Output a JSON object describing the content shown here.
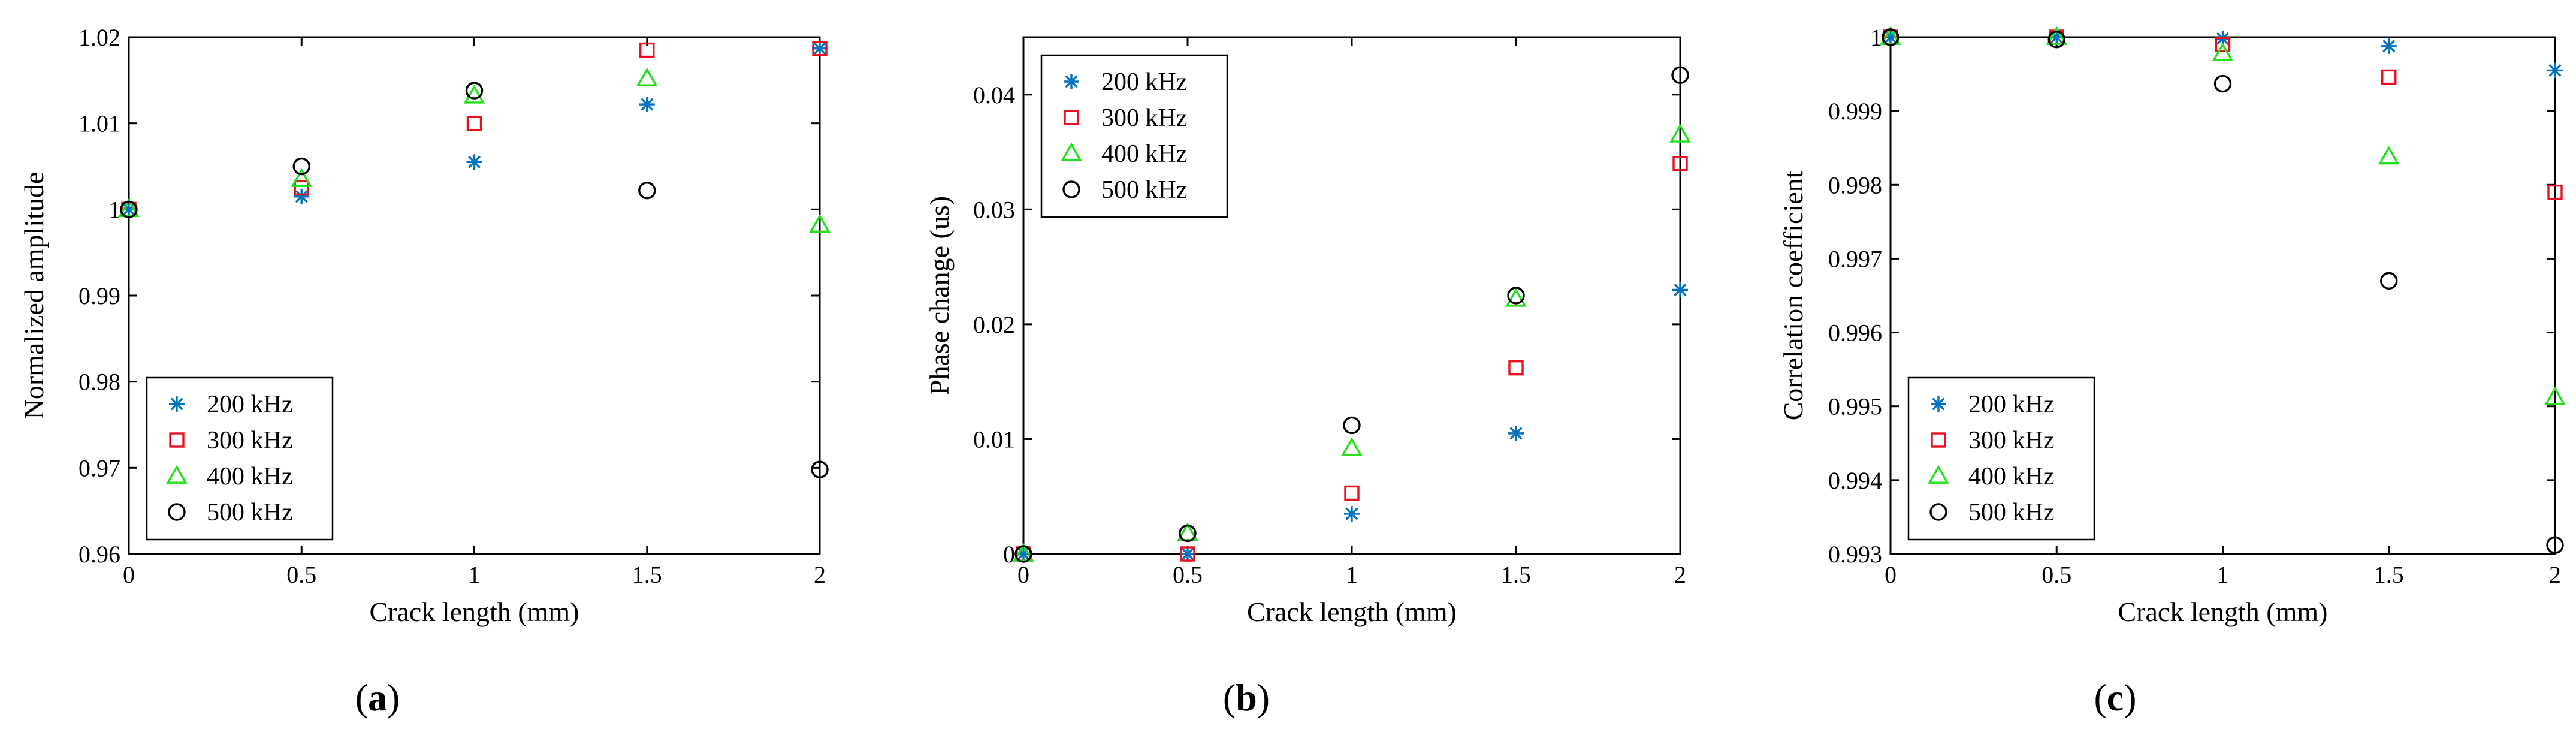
{
  "chart_data": [
    {
      "type": "scatter",
      "panel": "a",
      "panel_label": "a",
      "xlabel": "Crack length (mm)",
      "ylabel": "Normalized amplitude",
      "xlim": [
        0,
        2
      ],
      "ylim": [
        0.96,
        1.02
      ],
      "xticks": [
        0,
        0.5,
        1,
        1.5,
        2
      ],
      "xtick_labels": [
        "0",
        "0.5",
        "1",
        "1.5",
        "2"
      ],
      "yticks": [
        0.96,
        0.97,
        0.98,
        0.99,
        1.0,
        1.01,
        1.02
      ],
      "ytick_labels": [
        "0.96",
        "0.97",
        "0.98",
        "0.99",
        "1",
        "1.01",
        "1.02"
      ],
      "legend_position": "bottom-left",
      "x": [
        0,
        0.5,
        1,
        1.5,
        2
      ],
      "series": [
        {
          "name": "200 kHz",
          "values": [
            1.0,
            1.0015,
            1.0055,
            1.0122,
            1.0187
          ]
        },
        {
          "name": "300 kHz",
          "values": [
            1.0,
            1.0025,
            1.01,
            1.0185,
            1.0187
          ]
        },
        {
          "name": "400 kHz",
          "values": [
            1.0,
            1.0035,
            1.0132,
            1.0152,
            0.9982
          ]
        },
        {
          "name": "500 kHz",
          "values": [
            1.0,
            1.005,
            1.0138,
            1.0022,
            0.9698
          ]
        }
      ]
    },
    {
      "type": "scatter",
      "panel": "b",
      "panel_label": "b",
      "xlabel": "Crack length (mm)",
      "ylabel": "Phase change (us)",
      "xlim": [
        0,
        2
      ],
      "ylim": [
        0,
        0.045
      ],
      "xticks": [
        0,
        0.5,
        1,
        1.5,
        2
      ],
      "xtick_labels": [
        "0",
        "0.5",
        "1",
        "1.5",
        "2"
      ],
      "yticks": [
        0,
        0.01,
        0.02,
        0.03,
        0.04
      ],
      "ytick_labels": [
        "0",
        "0.01",
        "0.02",
        "0.03",
        "0.04"
      ],
      "legend_position": "top-left",
      "x": [
        0,
        0.5,
        1,
        1.5,
        2
      ],
      "series": [
        {
          "name": "200 kHz",
          "values": [
            0,
            0.0,
            0.0035,
            0.0105,
            0.023
          ]
        },
        {
          "name": "300 kHz",
          "values": [
            0,
            0.0,
            0.0053,
            0.0162,
            0.034
          ]
        },
        {
          "name": "400 kHz",
          "values": [
            0,
            0.0018,
            0.0092,
            0.0222,
            0.0365
          ]
        },
        {
          "name": "500 kHz",
          "values": [
            0,
            0.0018,
            0.0112,
            0.0225,
            0.0417
          ]
        }
      ]
    },
    {
      "type": "scatter",
      "panel": "c",
      "panel_label": "c",
      "xlabel": "Crack length (mm)",
      "ylabel": "Correlation coefficient",
      "xlim": [
        0,
        2
      ],
      "ylim": [
        0.993,
        1.0
      ],
      "xticks": [
        0,
        0.5,
        1,
        1.5,
        2
      ],
      "xtick_labels": [
        "0",
        "0.5",
        "1",
        "1.5",
        "2"
      ],
      "yticks": [
        0.993,
        0.994,
        0.995,
        0.996,
        0.997,
        0.998,
        0.999,
        1.0
      ],
      "ytick_labels": [
        "0.993",
        "0.994",
        "0.995",
        "0.996",
        "0.997",
        "0.998",
        "0.999",
        "1"
      ],
      "legend_position": "bottom-left",
      "x": [
        0,
        0.5,
        1,
        1.5,
        2
      ],
      "series": [
        {
          "name": "200 kHz",
          "values": [
            1.0,
            1.0,
            0.99998,
            0.99988,
            0.99955
          ]
        },
        {
          "name": "300 kHz",
          "values": [
            1.0,
            1.0,
            0.9999,
            0.99946,
            0.9979
          ]
        },
        {
          "name": "400 kHz",
          "values": [
            1.0,
            1.0,
            0.99978,
            0.99838,
            0.99512
          ]
        },
        {
          "name": "500 kHz",
          "values": [
            1.0,
            0.99997,
            0.99937,
            0.9967,
            0.99312
          ]
        }
      ]
    }
  ],
  "series_styles": [
    {
      "marker": "asterisk",
      "color": "#0072BD"
    },
    {
      "marker": "square",
      "color": "#E8101F"
    },
    {
      "marker": "triangle",
      "color": "#22E01A"
    },
    {
      "marker": "circle",
      "color": "#000000"
    }
  ]
}
